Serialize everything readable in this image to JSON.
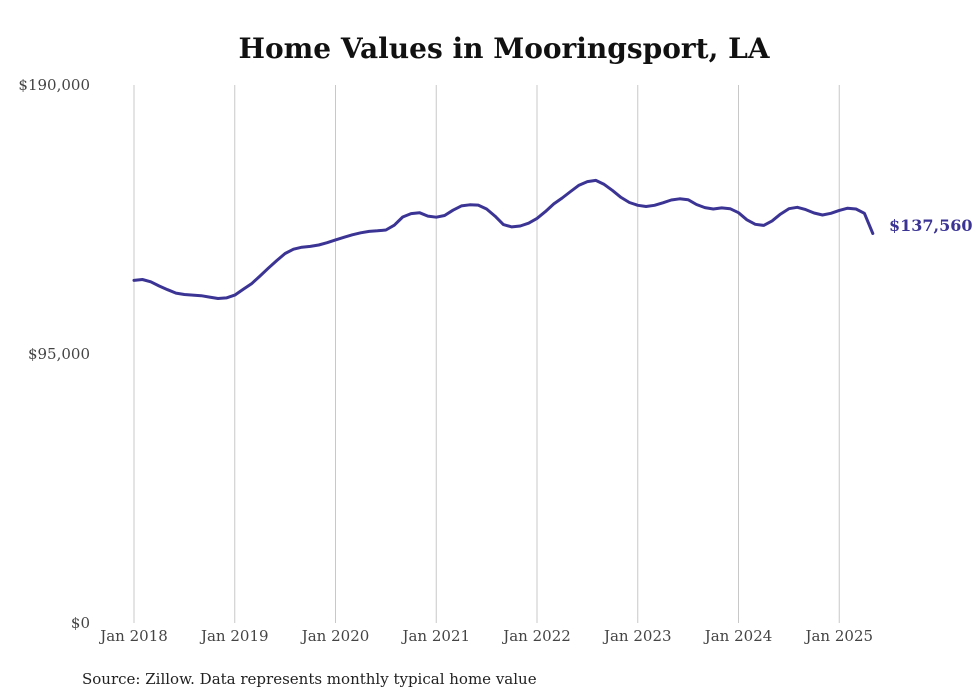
{
  "chart_data": {
    "type": "line",
    "title": "Home Values in Mooringsport, LA",
    "xlabel": "",
    "ylabel": "",
    "ylim": [
      0,
      190000
    ],
    "y_ticks": [
      {
        "value": 0,
        "label": "$0"
      },
      {
        "value": 95000,
        "label": "$95,000"
      },
      {
        "value": 190000,
        "label": "$190,000"
      }
    ],
    "x_ticks": [
      {
        "value": "2018-01",
        "label": "Jan 2018"
      },
      {
        "value": "2019-01",
        "label": "Jan 2019"
      },
      {
        "value": "2020-01",
        "label": "Jan 2020"
      },
      {
        "value": "2021-01",
        "label": "Jan 2021"
      },
      {
        "value": "2022-01",
        "label": "Jan 2022"
      },
      {
        "value": "2023-01",
        "label": "Jan 2023"
      },
      {
        "value": "2024-01",
        "label": "Jan 2024"
      },
      {
        "value": "2025-01",
        "label": "Jan 2025"
      }
    ],
    "grid": {
      "vertical": true,
      "horizontal": false
    },
    "colors": {
      "line": "#3b3494"
    },
    "end_label": "$137,560",
    "series": [
      {
        "x": [
          "2018-01",
          "2018-02",
          "2018-03",
          "2018-04",
          "2018-05",
          "2018-06",
          "2018-07",
          "2018-08",
          "2018-09",
          "2018-10",
          "2018-11",
          "2018-12",
          "2019-01",
          "2019-02",
          "2019-03",
          "2019-04",
          "2019-05",
          "2019-06",
          "2019-07",
          "2019-08",
          "2019-09",
          "2019-10",
          "2019-11",
          "2019-12",
          "2020-01",
          "2020-02",
          "2020-03",
          "2020-04",
          "2020-05",
          "2020-06",
          "2020-07",
          "2020-08",
          "2020-09",
          "2020-10",
          "2020-11",
          "2020-12",
          "2021-01",
          "2021-02",
          "2021-03",
          "2021-04",
          "2021-05",
          "2021-06",
          "2021-07",
          "2021-08",
          "2021-09",
          "2021-10",
          "2021-11",
          "2021-12",
          "2022-01",
          "2022-02",
          "2022-03",
          "2022-04",
          "2022-05",
          "2022-06",
          "2022-07",
          "2022-08",
          "2022-09",
          "2022-10",
          "2022-11",
          "2022-12",
          "2023-01",
          "2023-02",
          "2023-03",
          "2023-04",
          "2023-05",
          "2023-06",
          "2023-07",
          "2023-08",
          "2023-09",
          "2023-10",
          "2023-11",
          "2023-12",
          "2024-01",
          "2024-02",
          "2024-03",
          "2024-04",
          "2024-05",
          "2024-06",
          "2024-07",
          "2024-08",
          "2024-09",
          "2024-10",
          "2024-11",
          "2024-12",
          "2025-01",
          "2025-02",
          "2025-03",
          "2025-04",
          "2025-05"
        ],
        "values": [
          121000,
          121300,
          120500,
          119000,
          117700,
          116500,
          116000,
          115800,
          115600,
          115100,
          114600,
          114800,
          115800,
          117800,
          119800,
          122500,
          125300,
          128000,
          130500,
          132000,
          132700,
          133000,
          133500,
          134300,
          135300,
          136200,
          137100,
          137800,
          138300,
          138500,
          138800,
          140500,
          143400,
          144600,
          144900,
          143700,
          143300,
          143900,
          145800,
          147300,
          147700,
          147600,
          146200,
          143700,
          140700,
          139900,
          140200,
          141200,
          142900,
          145300,
          148000,
          150100,
          152400,
          154600,
          155900,
          156300,
          154900,
          152700,
          150300,
          148500,
          147500,
          147100,
          147500,
          148400,
          149400,
          149800,
          149500,
          147800,
          146700,
          146200,
          146600,
          146300,
          144900,
          142400,
          140800,
          140400,
          142000,
          144400,
          146300,
          146800,
          146000,
          144800,
          144100,
          144700,
          145700,
          146500,
          146200,
          144700,
          137560
        ]
      }
    ]
  },
  "source": "Source: Zillow. Data represents monthly typical home value"
}
